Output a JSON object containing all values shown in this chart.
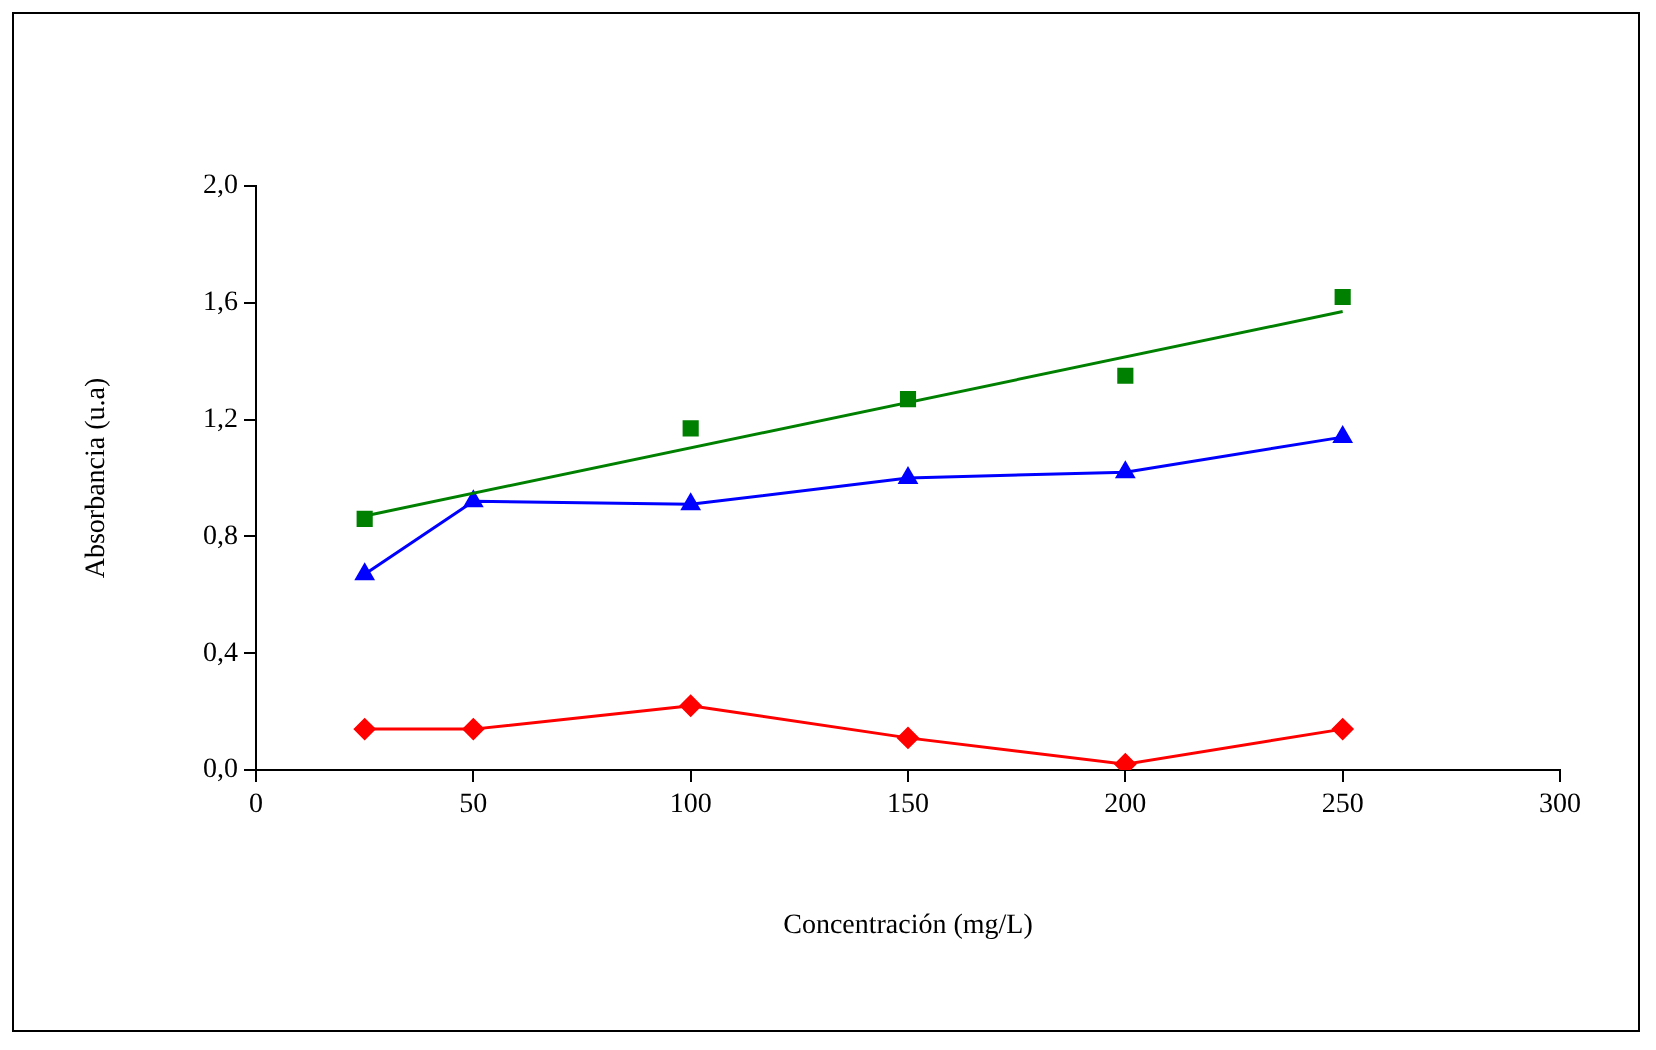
{
  "chart_data": {
    "type": "line",
    "xlabel": "Concentración (mg/L)",
    "ylabel": "Absorbancia (u.a)",
    "xlim": [
      0,
      300
    ],
    "xticks": [
      0,
      50,
      100,
      150,
      200,
      250,
      300
    ],
    "ylim": [
      0,
      2
    ],
    "yticks": [
      {
        "value": 0,
        "label": "0,0"
      },
      {
        "value": 0.4,
        "label": "0,4"
      },
      {
        "value": 0.8,
        "label": "0,8"
      },
      {
        "value": 1.2,
        "label": "1,2"
      },
      {
        "value": 1.6,
        "label": "1,6"
      },
      {
        "value": 2,
        "label": "2,0"
      }
    ],
    "grid": false,
    "legend": false,
    "line_style": "solid",
    "series": [
      {
        "type": "scatter",
        "marker": "square",
        "color": "#008000",
        "x": [
          25,
          100,
          150,
          200,
          250
        ],
        "values": [
          0.86,
          1.17,
          1.27,
          1.35,
          1.62
        ]
      },
      {
        "type": "line",
        "marker": "none",
        "color": "#008000",
        "x": [
          25,
          250
        ],
        "values": [
          0.87,
          1.57
        ]
      },
      {
        "type": "line",
        "marker": "triangle",
        "color": "#0000ff",
        "x": [
          25,
          50,
          100,
          150,
          200,
          250
        ],
        "values": [
          0.67,
          0.92,
          0.91,
          1.0,
          1.02,
          1.14
        ]
      },
      {
        "type": "line",
        "marker": "diamond",
        "color": "#ff0000",
        "x": [
          25,
          50,
          100,
          150,
          200,
          250
        ],
        "values": [
          0.14,
          0.14,
          0.22,
          0.11,
          0.02,
          0.14
        ]
      }
    ]
  }
}
